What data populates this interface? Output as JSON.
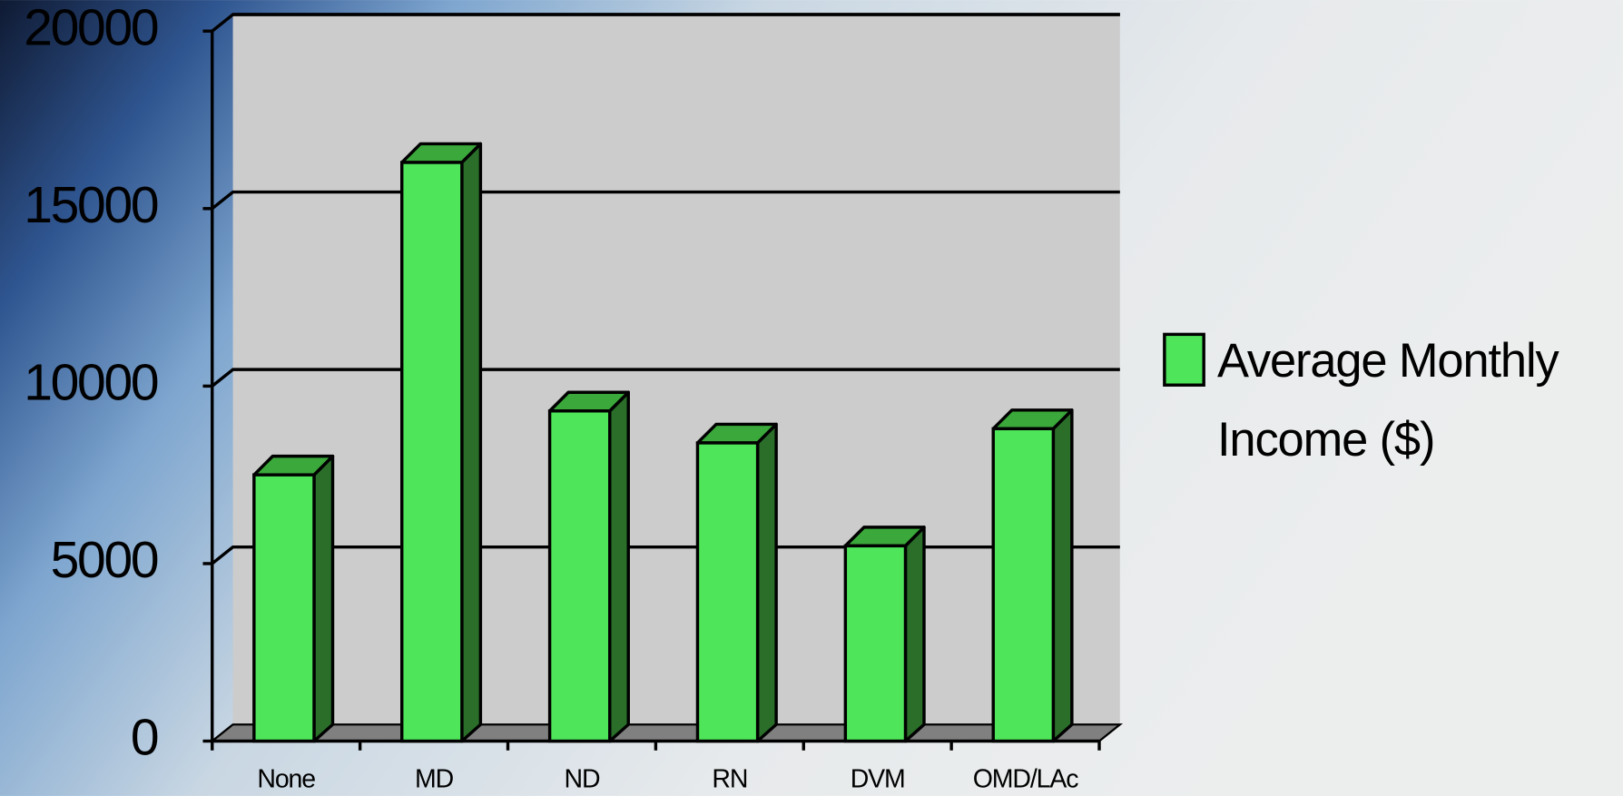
{
  "chart_data": {
    "type": "bar3d",
    "categories": [
      "None",
      "MD",
      "ND",
      "RN",
      "DVM",
      "OMD/LAc"
    ],
    "series": [
      {
        "name": "Average Monthly Income ($)",
        "color": "#4ee55a",
        "values": [
          7500,
          16300,
          9300,
          8400,
          5500,
          8800
        ]
      }
    ],
    "ylim": [
      0,
      20000
    ],
    "yticks": [
      0,
      5000,
      10000,
      15000,
      20000
    ],
    "grid": true,
    "legend": "right"
  }
}
